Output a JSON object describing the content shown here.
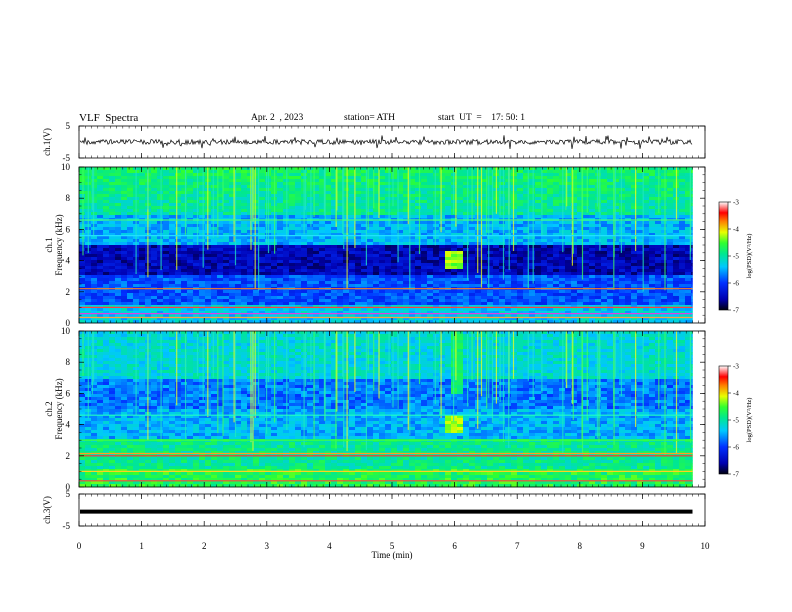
{
  "header": {
    "title": "VLF  Spectra",
    "date": "Apr. 2  , 2023",
    "station": "station= ATH",
    "start_ut": "start  UT  =    17: 50: 1"
  },
  "chart_data": [
    {
      "panel": "ch1-waveform",
      "type": "line",
      "ylabel": "ch.1(V)",
      "ylim": [
        -5,
        5
      ],
      "yticks": [
        "5",
        "-5"
      ]
    },
    {
      "panel": "ch1-spectrogram",
      "type": "heatmap",
      "ylabel": "ch.1\nFrequency  (kHz)",
      "ylim": [
        0,
        10
      ],
      "yticks": [
        "0",
        "2",
        "4",
        "6",
        "8",
        "10"
      ],
      "colorbar": {
        "label": "log(PSD)(V²/Hz)",
        "range": [
          -7,
          -3
        ],
        "ticks": [
          "-3",
          "-4",
          "-5",
          "-6",
          "-7"
        ]
      }
    },
    {
      "panel": "ch2-spectrogram",
      "type": "heatmap",
      "ylabel": "ch.2\nFrequency  (kHz)",
      "ylim": [
        0,
        10
      ],
      "yticks": [
        "0",
        "2",
        "4",
        "6",
        "8",
        "10"
      ],
      "colorbar": {
        "label": "log(PSD)(V²/Hz)",
        "range": [
          -7,
          -3
        ],
        "ticks": [
          "-3",
          "-4",
          "-5",
          "-6",
          "-7"
        ]
      }
    },
    {
      "panel": "ch3-waveform",
      "type": "line",
      "ylabel": "ch.3(V)",
      "ylim": [
        -5,
        5
      ],
      "yticks": [
        "5",
        "-5"
      ],
      "level": -0.5
    }
  ],
  "xaxis": {
    "label": "Time  (min)",
    "xlim": [
      0,
      10
    ],
    "ticks": [
      "0",
      "1",
      "2",
      "3",
      "4",
      "5",
      "6",
      "7",
      "8",
      "9",
      "10"
    ],
    "data_end": 9.8
  }
}
